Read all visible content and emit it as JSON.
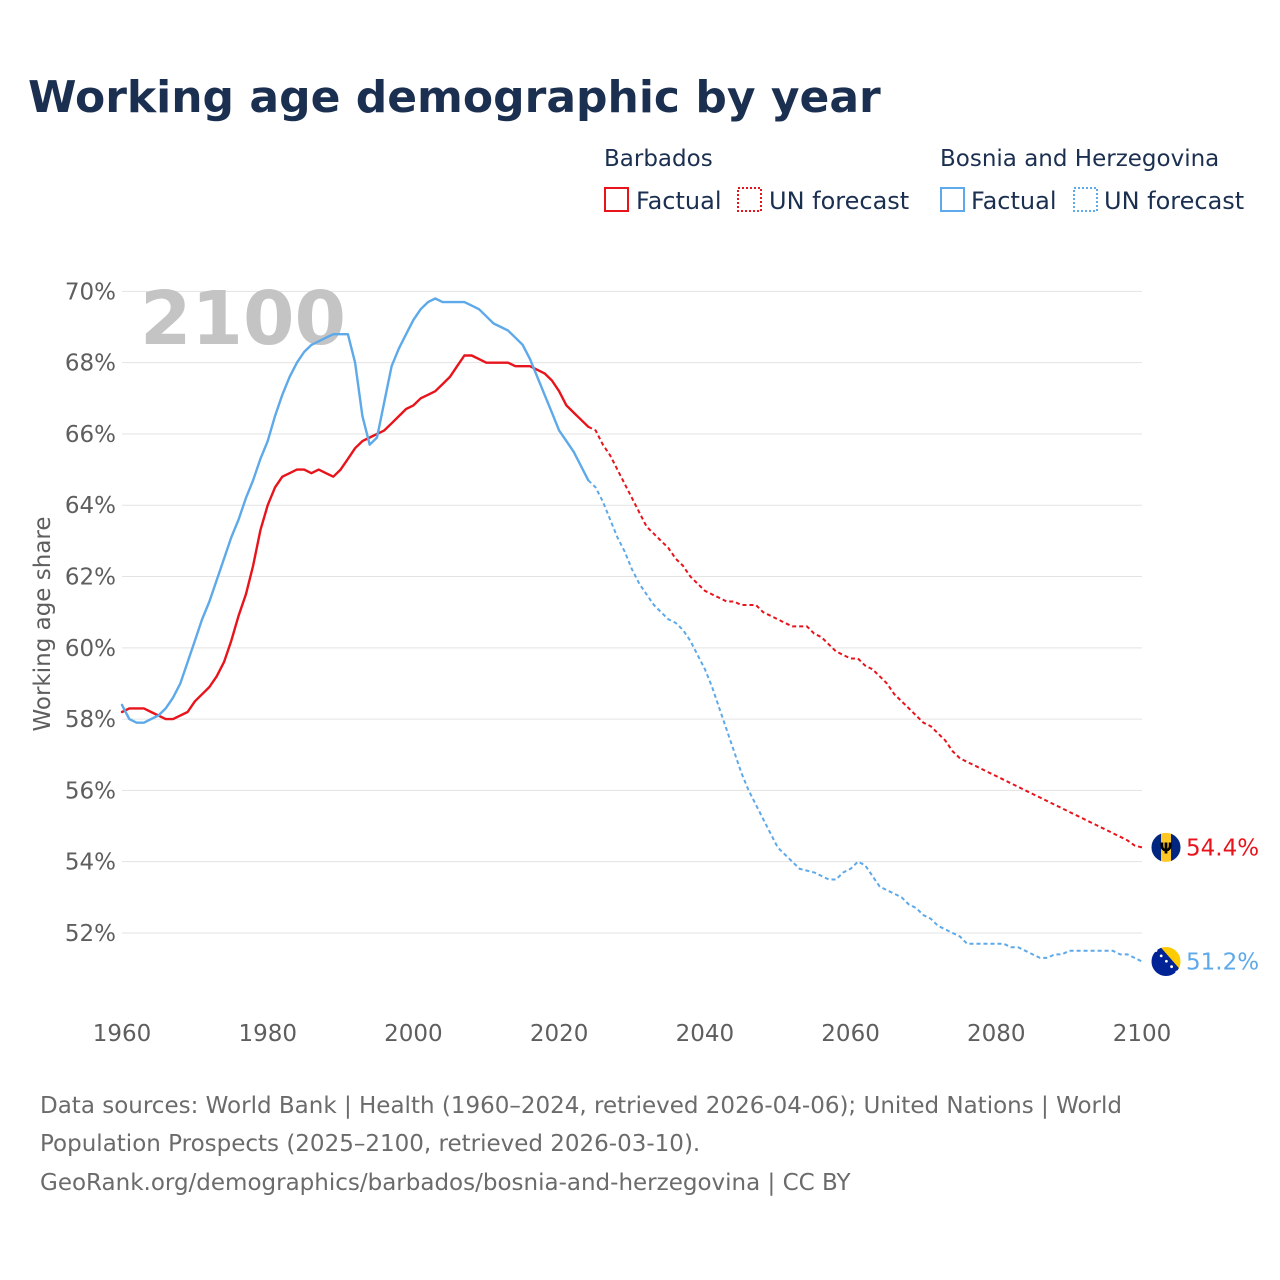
{
  "title": "Working age demographic by year",
  "year_watermark": "2100",
  "legend": {
    "groups": [
      {
        "country": "Barbados",
        "color": "#e8141c",
        "factual_label": "Factual",
        "forecast_label": "UN forecast"
      },
      {
        "country": "Bosnia and Herzegovina",
        "color": "#5da9e9",
        "factual_label": "Factual",
        "forecast_label": "UN forecast"
      }
    ]
  },
  "footer": {
    "sources_line1": "Data sources: World Bank | Health (1960–2024, retrieved 2026-04-06); United Nations | World",
    "sources_line2": "Population Prospects (2025–2100, retrieved 2026-03-10).",
    "credit": "GeoRank.org/demographics/barbados/bosnia-and-herzegovina | CC BY"
  },
  "chart_data": {
    "type": "line",
    "title": "Working age demographic by year",
    "xlabel": "",
    "ylabel": "Working age share",
    "xlim": [
      1960,
      2100
    ],
    "ylim": [
      50.4,
      70.6
    ],
    "x_ticks": [
      1960,
      1980,
      2000,
      2020,
      2040,
      2060,
      2080,
      2100
    ],
    "y_ticks": [
      52,
      54,
      56,
      58,
      60,
      62,
      64,
      66,
      68,
      70
    ],
    "y_tick_suffix": "%",
    "grid": true,
    "series": [
      {
        "name": "Barbados",
        "color": "#e8141c",
        "flag": "barbados",
        "end_label": "54.4%",
        "factual": [
          [
            1960,
            58.2
          ],
          [
            1961,
            58.3
          ],
          [
            1963,
            58.3
          ],
          [
            1964,
            58.2
          ],
          [
            1966,
            58.0
          ],
          [
            1967,
            58.0
          ],
          [
            1969,
            58.2
          ],
          [
            1970,
            58.5
          ],
          [
            1972,
            58.9
          ],
          [
            1973,
            59.2
          ],
          [
            1974,
            59.6
          ],
          [
            1975,
            60.2
          ],
          [
            1976,
            60.9
          ],
          [
            1977,
            61.5
          ],
          [
            1978,
            62.3
          ],
          [
            1979,
            63.3
          ],
          [
            1980,
            64.0
          ],
          [
            1981,
            64.5
          ],
          [
            1982,
            64.8
          ],
          [
            1983,
            64.9
          ],
          [
            1984,
            65.0
          ],
          [
            1985,
            65.0
          ],
          [
            1986,
            64.9
          ],
          [
            1987,
            65.0
          ],
          [
            1988,
            64.9
          ],
          [
            1989,
            64.8
          ],
          [
            1990,
            65.0
          ],
          [
            1991,
            65.3
          ],
          [
            1992,
            65.6
          ],
          [
            1993,
            65.8
          ],
          [
            1994,
            65.9
          ],
          [
            1995,
            66.0
          ],
          [
            1996,
            66.1
          ],
          [
            1997,
            66.3
          ],
          [
            1998,
            66.5
          ],
          [
            1999,
            66.7
          ],
          [
            2000,
            66.8
          ],
          [
            2001,
            67.0
          ],
          [
            2002,
            67.1
          ],
          [
            2003,
            67.2
          ],
          [
            2004,
            67.4
          ],
          [
            2005,
            67.6
          ],
          [
            2006,
            67.9
          ],
          [
            2007,
            68.2
          ],
          [
            2008,
            68.2
          ],
          [
            2009,
            68.1
          ],
          [
            2010,
            68.0
          ],
          [
            2011,
            68.0
          ],
          [
            2012,
            68.0
          ],
          [
            2013,
            68.0
          ],
          [
            2014,
            67.9
          ],
          [
            2015,
            67.9
          ],
          [
            2016,
            67.9
          ],
          [
            2017,
            67.8
          ],
          [
            2018,
            67.7
          ],
          [
            2019,
            67.5
          ],
          [
            2020,
            67.2
          ],
          [
            2021,
            66.8
          ],
          [
            2022,
            66.6
          ],
          [
            2023,
            66.4
          ],
          [
            2024,
            66.2
          ]
        ],
        "forecast": [
          [
            2024,
            66.2
          ],
          [
            2025,
            66.1
          ],
          [
            2026,
            65.7
          ],
          [
            2027,
            65.4
          ],
          [
            2028,
            65.0
          ],
          [
            2029,
            64.6
          ],
          [
            2030,
            64.2
          ],
          [
            2031,
            63.8
          ],
          [
            2032,
            63.4
          ],
          [
            2033,
            63.2
          ],
          [
            2034,
            63.0
          ],
          [
            2035,
            62.8
          ],
          [
            2036,
            62.5
          ],
          [
            2037,
            62.3
          ],
          [
            2038,
            62.0
          ],
          [
            2039,
            61.8
          ],
          [
            2040,
            61.6
          ],
          [
            2041,
            61.5
          ],
          [
            2042,
            61.4
          ],
          [
            2043,
            61.3
          ],
          [
            2044,
            61.3
          ],
          [
            2045,
            61.2
          ],
          [
            2046,
            61.2
          ],
          [
            2047,
            61.2
          ],
          [
            2048,
            61.0
          ],
          [
            2049,
            60.9
          ],
          [
            2050,
            60.8
          ],
          [
            2051,
            60.7
          ],
          [
            2052,
            60.6
          ],
          [
            2053,
            60.6
          ],
          [
            2054,
            60.6
          ],
          [
            2055,
            60.4
          ],
          [
            2056,
            60.3
          ],
          [
            2057,
            60.1
          ],
          [
            2058,
            59.9
          ],
          [
            2059,
            59.8
          ],
          [
            2060,
            59.7
          ],
          [
            2061,
            59.7
          ],
          [
            2062,
            59.5
          ],
          [
            2063,
            59.4
          ],
          [
            2064,
            59.2
          ],
          [
            2065,
            59.0
          ],
          [
            2066,
            58.7
          ],
          [
            2067,
            58.5
          ],
          [
            2068,
            58.3
          ],
          [
            2069,
            58.1
          ],
          [
            2070,
            57.9
          ],
          [
            2071,
            57.8
          ],
          [
            2072,
            57.6
          ],
          [
            2073,
            57.4
          ],
          [
            2074,
            57.1
          ],
          [
            2075,
            56.9
          ],
          [
            2076,
            56.8
          ],
          [
            2077,
            56.7
          ],
          [
            2078,
            56.6
          ],
          [
            2079,
            56.5
          ],
          [
            2080,
            56.4
          ],
          [
            2081,
            56.3
          ],
          [
            2082,
            56.2
          ],
          [
            2083,
            56.1
          ],
          [
            2084,
            56.0
          ],
          [
            2085,
            55.9
          ],
          [
            2086,
            55.8
          ],
          [
            2087,
            55.7
          ],
          [
            2088,
            55.6
          ],
          [
            2089,
            55.5
          ],
          [
            2090,
            55.4
          ],
          [
            2091,
            55.3
          ],
          [
            2092,
            55.2
          ],
          [
            2093,
            55.1
          ],
          [
            2094,
            55.0
          ],
          [
            2095,
            54.9
          ],
          [
            2096,
            54.8
          ],
          [
            2097,
            54.7
          ],
          [
            2098,
            54.6
          ],
          [
            2099,
            54.45
          ],
          [
            2100,
            54.4
          ]
        ]
      },
      {
        "name": "Bosnia and Herzegovina",
        "color": "#5da9e9",
        "flag": "bosnia",
        "end_label": "51.2%",
        "factual": [
          [
            1960,
            58.4
          ],
          [
            1961,
            58.0
          ],
          [
            1962,
            57.9
          ],
          [
            1963,
            57.9
          ],
          [
            1964,
            58.0
          ],
          [
            1965,
            58.1
          ],
          [
            1966,
            58.3
          ],
          [
            1967,
            58.6
          ],
          [
            1968,
            59.0
          ],
          [
            1969,
            59.6
          ],
          [
            1970,
            60.2
          ],
          [
            1971,
            60.8
          ],
          [
            1972,
            61.3
          ],
          [
            1973,
            61.9
          ],
          [
            1974,
            62.5
          ],
          [
            1975,
            63.1
          ],
          [
            1976,
            63.6
          ],
          [
            1977,
            64.2
          ],
          [
            1978,
            64.7
          ],
          [
            1979,
            65.3
          ],
          [
            1980,
            65.8
          ],
          [
            1981,
            66.5
          ],
          [
            1982,
            67.1
          ],
          [
            1983,
            67.6
          ],
          [
            1984,
            68.0
          ],
          [
            1985,
            68.3
          ],
          [
            1986,
            68.5
          ],
          [
            1987,
            68.6
          ],
          [
            1988,
            68.7
          ],
          [
            1989,
            68.8
          ],
          [
            1990,
            68.8
          ],
          [
            1991,
            68.8
          ],
          [
            1992,
            68.0
          ],
          [
            1993,
            66.5
          ],
          [
            1994,
            65.7
          ],
          [
            1995,
            65.9
          ],
          [
            1996,
            66.9
          ],
          [
            1997,
            67.9
          ],
          [
            1998,
            68.4
          ],
          [
            1999,
            68.8
          ],
          [
            2000,
            69.2
          ],
          [
            2001,
            69.5
          ],
          [
            2002,
            69.7
          ],
          [
            2003,
            69.8
          ],
          [
            2004,
            69.7
          ],
          [
            2005,
            69.7
          ],
          [
            2006,
            69.7
          ],
          [
            2007,
            69.7
          ],
          [
            2008,
            69.6
          ],
          [
            2009,
            69.5
          ],
          [
            2010,
            69.3
          ],
          [
            2011,
            69.1
          ],
          [
            2012,
            69.0
          ],
          [
            2013,
            68.9
          ],
          [
            2014,
            68.7
          ],
          [
            2015,
            68.5
          ],
          [
            2016,
            68.1
          ],
          [
            2017,
            67.6
          ],
          [
            2018,
            67.1
          ],
          [
            2019,
            66.6
          ],
          [
            2020,
            66.1
          ],
          [
            2021,
            65.8
          ],
          [
            2022,
            65.5
          ],
          [
            2023,
            65.1
          ],
          [
            2024,
            64.7
          ]
        ],
        "forecast": [
          [
            2024,
            64.7
          ],
          [
            2025,
            64.5
          ],
          [
            2026,
            64.1
          ],
          [
            2027,
            63.6
          ],
          [
            2028,
            63.1
          ],
          [
            2029,
            62.7
          ],
          [
            2030,
            62.2
          ],
          [
            2031,
            61.8
          ],
          [
            2032,
            61.5
          ],
          [
            2033,
            61.2
          ],
          [
            2034,
            61.0
          ],
          [
            2035,
            60.8
          ],
          [
            2036,
            60.7
          ],
          [
            2037,
            60.5
          ],
          [
            2038,
            60.2
          ],
          [
            2039,
            59.8
          ],
          [
            2040,
            59.4
          ],
          [
            2041,
            58.9
          ],
          [
            2042,
            58.3
          ],
          [
            2043,
            57.7
          ],
          [
            2044,
            57.1
          ],
          [
            2045,
            56.5
          ],
          [
            2046,
            56.0
          ],
          [
            2047,
            55.6
          ],
          [
            2048,
            55.2
          ],
          [
            2049,
            54.8
          ],
          [
            2050,
            54.4
          ],
          [
            2051,
            54.2
          ],
          [
            2052,
            54.0
          ],
          [
            2053,
            53.8
          ],
          [
            2054,
            53.75
          ],
          [
            2055,
            53.7
          ],
          [
            2056,
            53.6
          ],
          [
            2057,
            53.5
          ],
          [
            2058,
            53.5
          ],
          [
            2059,
            53.7
          ],
          [
            2060,
            53.8
          ],
          [
            2061,
            54.0
          ],
          [
            2062,
            53.9
          ],
          [
            2063,
            53.6
          ],
          [
            2064,
            53.3
          ],
          [
            2065,
            53.2
          ],
          [
            2066,
            53.1
          ],
          [
            2067,
            53.0
          ],
          [
            2068,
            52.8
          ],
          [
            2069,
            52.7
          ],
          [
            2070,
            52.5
          ],
          [
            2071,
            52.4
          ],
          [
            2072,
            52.2
          ],
          [
            2073,
            52.1
          ],
          [
            2074,
            52.0
          ],
          [
            2075,
            51.9
          ],
          [
            2076,
            51.7
          ],
          [
            2077,
            51.7
          ],
          [
            2078,
            51.7
          ],
          [
            2079,
            51.7
          ],
          [
            2080,
            51.7
          ],
          [
            2081,
            51.7
          ],
          [
            2082,
            51.6
          ],
          [
            2083,
            51.6
          ],
          [
            2084,
            51.5
          ],
          [
            2085,
            51.4
          ],
          [
            2086,
            51.3
          ],
          [
            2087,
            51.3
          ],
          [
            2088,
            51.4
          ],
          [
            2089,
            51.4
          ],
          [
            2090,
            51.5
          ],
          [
            2091,
            51.5
          ],
          [
            2092,
            51.5
          ],
          [
            2093,
            51.5
          ],
          [
            2094,
            51.5
          ],
          [
            2095,
            51.5
          ],
          [
            2096,
            51.5
          ],
          [
            2097,
            51.4
          ],
          [
            2098,
            51.4
          ],
          [
            2099,
            51.3
          ],
          [
            2100,
            51.2
          ]
        ]
      }
    ]
  }
}
